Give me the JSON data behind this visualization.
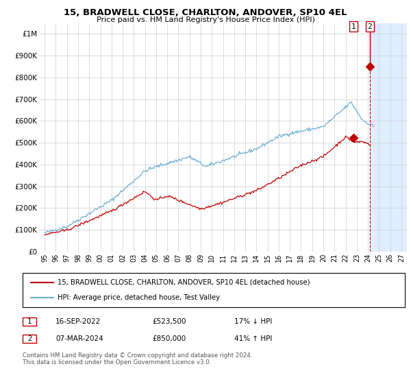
{
  "title": "15, BRADWELL CLOSE, CHARLTON, ANDOVER, SP10 4EL",
  "subtitle": "Price paid vs. HM Land Registry's House Price Index (HPI)",
  "ylim": [
    0,
    1050000
  ],
  "xlim_start": 1994.5,
  "xlim_end": 2027.5,
  "yticks": [
    0,
    100000,
    200000,
    300000,
    400000,
    500000,
    600000,
    700000,
    800000,
    900000,
    1000000
  ],
  "ytick_labels": [
    "£0",
    "£100K",
    "£200K",
    "£300K",
    "£400K",
    "£500K",
    "£600K",
    "£700K",
    "£800K",
    "£900K",
    "£1M"
  ],
  "xticks": [
    1995,
    1996,
    1997,
    1998,
    1999,
    2000,
    2001,
    2002,
    2003,
    2004,
    2005,
    2006,
    2007,
    2008,
    2009,
    2010,
    2011,
    2012,
    2013,
    2014,
    2015,
    2016,
    2017,
    2018,
    2019,
    2020,
    2021,
    2022,
    2023,
    2024,
    2025,
    2026,
    2027
  ],
  "hpi_color": "#6baed6",
  "price_color": "#c00000",
  "dot_color": "#c00000",
  "sale1_x": 2022.71,
  "sale1_y": 523500,
  "sale1_label": "1",
  "sale2_x": 2024.17,
  "sale2_y": 850000,
  "sale2_label": "2",
  "vline_color": "#c00000",
  "grid_color": "#cccccc",
  "legend_label_red": "15, BRADWELL CLOSE, CHARLTON, ANDOVER, SP10 4EL (detached house)",
  "legend_label_blue": "HPI: Average price, detached house, Test Valley",
  "table_row1": [
    "1",
    "16-SEP-2022",
    "£523,500",
    "17% ↓ HPI"
  ],
  "table_row2": [
    "2",
    "07-MAR-2024",
    "£850,000",
    "41% ↑ HPI"
  ],
  "footnote": "Contains HM Land Registry data © Crown copyright and database right 2024.\nThis data is licensed under the Open Government Licence v3.0.",
  "future_start": 2024.17,
  "future_color": "#ddeeff",
  "background_color": "#ffffff"
}
